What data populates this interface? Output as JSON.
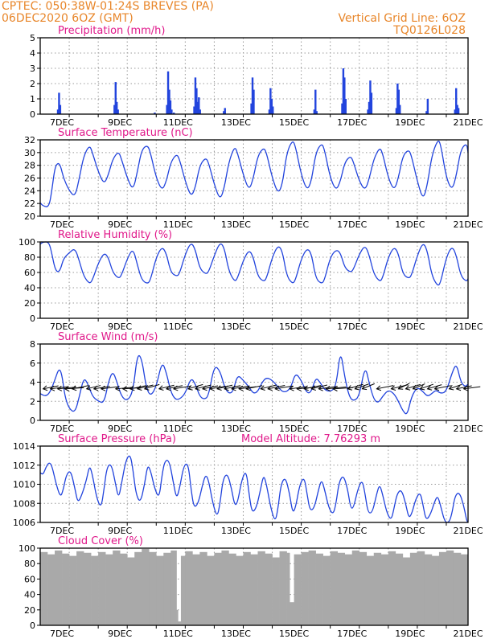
{
  "header": {
    "line1_left": "CPTEC:   050:38W-01:24S   BREVES (PA)",
    "line2_left": "06DEC2020 6OZ (GMT)",
    "line1_right": "Vertical Grid Line: 6OZ",
    "line2_right": "TQ0126L028"
  },
  "colors": {
    "header": "#e8862a",
    "title": "#e0188a",
    "series": "#2244dd",
    "cloud": "#a9a9a9"
  },
  "x_axis": {
    "labels": [
      "7DEC",
      "9DEC",
      "11DEC",
      "13DEC",
      "15DEC",
      "17DEC",
      "19DEC",
      "21DEC"
    ],
    "label_day": [
      7,
      9,
      11,
      13,
      15,
      17,
      19,
      21
    ],
    "start_day": 6.25,
    "end_day": 21.0,
    "grid_days": [
      7.25,
      8.25,
      9.25,
      10.25,
      11.25,
      12.25,
      13.25,
      14.25,
      15.25,
      16.25,
      17.25,
      18.25,
      19.25,
      20.25
    ]
  },
  "chart_data": [
    {
      "id": "precip",
      "type": "bar",
      "title": "Precipitation (mm/h)",
      "ylim": [
        0,
        5
      ],
      "yticks": [
        0,
        1,
        2,
        3,
        4,
        5
      ],
      "unit": "mm/h",
      "x": [
        6.86,
        6.9,
        6.94,
        8.81,
        8.85,
        8.89,
        8.93,
        10.2,
        10.62,
        10.66,
        10.7,
        10.74,
        10.78,
        10.86,
        11.56,
        11.6,
        11.64,
        11.68,
        11.72,
        11.76,
        12.58,
        12.62,
        13.53,
        13.57,
        13.61,
        14.15,
        14.19,
        14.23,
        14.27,
        15.7,
        15.74,
        15.78,
        16.66,
        16.7,
        16.74,
        16.78,
        17.55,
        17.59,
        17.63,
        17.67,
        18.53,
        18.57,
        18.61,
        18.65,
        19.57,
        19.61,
        20.55,
        20.59,
        20.63,
        20.67
      ],
      "values": [
        0.3,
        1.4,
        0.6,
        0.6,
        2.1,
        0.8,
        0.3,
        0.1,
        0.6,
        2.8,
        1.6,
        0.9,
        0.3,
        0.1,
        0.5,
        2.4,
        1.7,
        0.8,
        1.1,
        0.3,
        0.2,
        0.4,
        0.7,
        2.4,
        1.6,
        0.3,
        1.7,
        1.0,
        0.5,
        0.3,
        1.6,
        0.2,
        0.7,
        3.0,
        2.4,
        1.0,
        0.3,
        0.8,
        2.2,
        1.4,
        0.4,
        2.0,
        1.6,
        0.6,
        0.2,
        1.0,
        0.3,
        1.7,
        0.6,
        0.4
      ]
    },
    {
      "id": "temp",
      "type": "line",
      "title": "Surface Temperature (nC)",
      "ylim": [
        20,
        32
      ],
      "yticks": [
        20,
        22,
        24,
        26,
        28,
        30,
        32
      ],
      "unit": "nC",
      "x": [
        6.25,
        6.35,
        6.55,
        6.65,
        6.75,
        6.85,
        6.95,
        7.05,
        7.25,
        7.45,
        7.6,
        7.75,
        7.95,
        8.05,
        8.25,
        8.45,
        8.6,
        8.75,
        8.95,
        9.05,
        9.25,
        9.45,
        9.6,
        9.75,
        9.95,
        10.05,
        10.25,
        10.45,
        10.6,
        10.75,
        10.95,
        11.05,
        11.25,
        11.45,
        11.6,
        11.75,
        11.95,
        12.05,
        12.25,
        12.45,
        12.6,
        12.75,
        12.95,
        13.05,
        13.25,
        13.45,
        13.6,
        13.75,
        13.95,
        14.05,
        14.25,
        14.45,
        14.6,
        14.75,
        14.95,
        15.05,
        15.25,
        15.45,
        15.6,
        15.75,
        15.95,
        16.05,
        16.25,
        16.45,
        16.6,
        16.75,
        16.95,
        17.05,
        17.25,
        17.45,
        17.6,
        17.75,
        17.95,
        18.05,
        18.25,
        18.45,
        18.6,
        18.75,
        18.95,
        19.05,
        19.25,
        19.45,
        19.6,
        19.75,
        19.95,
        20.05,
        20.25,
        20.45,
        20.6,
        20.75,
        20.95,
        21.0
      ],
      "values": [
        22.1,
        21.6,
        21.4,
        24.0,
        27.5,
        28.4,
        28.0,
        26.0,
        24.0,
        23.0,
        26.0,
        29.5,
        31.2,
        30.0,
        27.0,
        25.0,
        26.5,
        29.0,
        30.2,
        29.0,
        26.0,
        24.0,
        27.0,
        30.5,
        31.2,
        30.0,
        26.0,
        24.0,
        25.5,
        28.5,
        29.8,
        29.0,
        25.5,
        23.0,
        24.5,
        28.0,
        29.2,
        28.5,
        25.0,
        22.5,
        24.5,
        28.5,
        31.0,
        30.0,
        26.5,
        24.0,
        26.0,
        29.5,
        30.8,
        30.0,
        26.0,
        23.5,
        25.0,
        30.0,
        32.0,
        31.0,
        26.5,
        24.0,
        25.5,
        30.0,
        31.5,
        30.5,
        26.0,
        24.0,
        25.5,
        28.5,
        29.5,
        28.5,
        25.5,
        24.0,
        26.0,
        29.0,
        30.8,
        30.0,
        26.0,
        24.0,
        26.0,
        29.5,
        30.5,
        29.5,
        25.5,
        22.5,
        25.0,
        29.5,
        32.0,
        31.5,
        26.0,
        24.0,
        26.5,
        30.5,
        31.5,
        30.0
      ]
    },
    {
      "id": "rh",
      "type": "line",
      "title": "Relative Humidity (%)",
      "ylim": [
        0,
        100
      ],
      "yticks": [
        0,
        20,
        40,
        60,
        80,
        100
      ],
      "unit": "%",
      "x": [
        6.25,
        6.35,
        6.55,
        6.65,
        6.75,
        6.85,
        6.95,
        7.05,
        7.25,
        7.45,
        7.6,
        7.75,
        7.95,
        8.05,
        8.25,
        8.45,
        8.6,
        8.75,
        8.95,
        9.05,
        9.25,
        9.45,
        9.6,
        9.75,
        9.95,
        10.05,
        10.25,
        10.45,
        10.6,
        10.75,
        10.95,
        11.05,
        11.25,
        11.45,
        11.6,
        11.75,
        11.95,
        12.05,
        12.25,
        12.45,
        12.6,
        12.75,
        12.95,
        13.05,
        13.25,
        13.45,
        13.6,
        13.75,
        13.95,
        14.05,
        14.25,
        14.45,
        14.6,
        14.75,
        14.95,
        15.05,
        15.25,
        15.45,
        15.6,
        15.75,
        15.95,
        16.05,
        16.25,
        16.45,
        16.6,
        16.75,
        16.95,
        17.05,
        17.25,
        17.45,
        17.6,
        17.75,
        17.95,
        18.05,
        18.25,
        18.45,
        18.6,
        18.75,
        18.95,
        19.05,
        19.25,
        19.45,
        19.6,
        19.75,
        19.95,
        20.05,
        20.25,
        20.45,
        20.6,
        20.75,
        20.95,
        21.0
      ],
      "values": [
        97,
        100,
        100,
        85,
        66,
        60,
        64,
        78,
        86,
        92,
        75,
        55,
        45,
        50,
        72,
        86,
        80,
        60,
        52,
        56,
        78,
        92,
        70,
        50,
        45,
        50,
        80,
        94,
        85,
        60,
        55,
        58,
        84,
        100,
        90,
        65,
        58,
        60,
        82,
        100,
        92,
        62,
        48,
        52,
        76,
        90,
        80,
        55,
        48,
        52,
        80,
        96,
        88,
        55,
        45,
        50,
        78,
        92,
        85,
        52,
        45,
        50,
        80,
        90,
        86,
        66,
        60,
        64,
        84,
        96,
        82,
        58,
        48,
        52,
        80,
        94,
        85,
        58,
        52,
        56,
        82,
        100,
        88,
        56,
        42,
        46,
        80,
        95,
        82,
        55,
        48,
        52
      ]
    },
    {
      "id": "wind",
      "type": "line",
      "title": "Surface Wind (m/s)",
      "ylim": [
        0,
        8
      ],
      "yticks": [
        0,
        2,
        4,
        6,
        8
      ],
      "unit": "m/s",
      "x": [
        6.25,
        6.45,
        6.6,
        6.75,
        6.9,
        7.0,
        7.1,
        7.25,
        7.45,
        7.6,
        7.75,
        7.9,
        8.05,
        8.25,
        8.45,
        8.6,
        8.75,
        8.9,
        9.05,
        9.25,
        9.45,
        9.6,
        9.75,
        9.9,
        10.05,
        10.25,
        10.45,
        10.6,
        10.75,
        10.9,
        11.05,
        11.25,
        11.45,
        11.6,
        11.75,
        11.9,
        12.05,
        12.25,
        12.45,
        12.6,
        12.75,
        12.9,
        13.05,
        13.25,
        13.45,
        13.6,
        13.75,
        13.9,
        14.05,
        14.25,
        14.45,
        14.6,
        14.75,
        14.9,
        15.05,
        15.25,
        15.45,
        15.6,
        15.75,
        15.9,
        16.05,
        16.25,
        16.45,
        16.6,
        16.75,
        16.9,
        17.05,
        17.25,
        17.45,
        17.6,
        17.75,
        17.9,
        18.05,
        18.25,
        18.45,
        18.6,
        18.75,
        18.9,
        19.05,
        19.25,
        19.45,
        19.6,
        19.75,
        19.9,
        20.05,
        20.25,
        20.45,
        20.6,
        20.75,
        20.9,
        21.0
      ],
      "values": [
        2.8,
        2.5,
        3.0,
        4.2,
        5.5,
        4.8,
        2.5,
        1.2,
        0.8,
        2.5,
        4.5,
        3.8,
        2.5,
        2.0,
        1.8,
        4.0,
        5.2,
        4.0,
        2.5,
        2.0,
        3.0,
        7.0,
        6.5,
        3.5,
        2.5,
        3.5,
        6.2,
        5.0,
        3.0,
        2.2,
        2.2,
        2.8,
        4.5,
        3.8,
        2.5,
        2.2,
        2.5,
        5.8,
        5.2,
        3.5,
        2.8,
        3.0,
        4.8,
        4.2,
        3.5,
        2.8,
        3.0,
        4.0,
        4.5,
        4.2,
        3.5,
        3.0,
        3.0,
        3.5,
        5.0,
        4.2,
        2.8,
        3.0,
        4.5,
        4.0,
        3.2,
        3.0,
        3.5,
        7.5,
        4.5,
        2.5,
        2.0,
        2.5,
        5.8,
        3.8,
        2.2,
        1.8,
        2.5,
        3.2,
        2.8,
        2.0,
        1.0,
        0.5,
        2.5,
        3.5,
        3.0,
        2.5,
        2.8,
        3.2,
        2.8,
        3.0,
        5.0,
        6.0,
        4.0,
        3.5,
        3.8
      ],
      "barb_days": [
        6.35,
        6.6,
        6.85,
        7.1,
        7.35,
        7.85,
        8.1,
        8.35,
        8.85,
        9.1,
        9.35,
        9.6,
        9.85,
        10.35,
        10.6,
        10.85,
        11.35,
        11.6,
        11.85,
        12.1,
        12.35,
        12.6,
        12.85,
        13.1,
        13.35,
        13.85,
        14.1,
        14.35,
        14.85,
        15.1,
        15.35,
        15.6,
        15.85,
        16.1,
        16.35,
        16.85,
        17.1,
        17.35,
        17.85,
        18.35,
        18.6,
        18.85,
        19.1,
        19.35,
        19.6,
        19.85,
        20.35,
        20.6,
        20.85
      ],
      "barb_dir_deg": [
        60,
        70,
        75,
        80,
        60,
        55,
        65,
        70,
        75,
        80,
        60,
        55,
        50,
        55,
        60,
        65,
        50,
        55,
        60,
        65,
        55,
        60,
        65,
        70,
        60,
        55,
        60,
        65,
        70,
        75,
        60,
        55,
        70,
        75,
        80,
        50,
        45,
        40,
        60,
        55,
        35,
        50,
        40,
        45,
        50,
        60,
        45,
        60,
        70
      ],
      "barb_speed": [
        3.0,
        3.5,
        3.5,
        3.5,
        3.5,
        2.8,
        3.0,
        3.2,
        3.0,
        3.2,
        3.3,
        3.5,
        3.5,
        3.2,
        3.3,
        3.3,
        3.5,
        3.5,
        3.0,
        3.0,
        3.3,
        3.3,
        3.5,
        3.2,
        3.3,
        3.5,
        3.6,
        3.5,
        3.3,
        3.3,
        3.5,
        3.5,
        3.8,
        4.0,
        3.8,
        3.8,
        3.6,
        3.5,
        3.5,
        3.8,
        3.5,
        3.5,
        3.3,
        3.3,
        3.3,
        3.3,
        3.0,
        3.0,
        3.0
      ]
    },
    {
      "id": "pres",
      "type": "line",
      "title": "Surface Pressure (hPa)",
      "annotation": "Model Altitude: 7.76293 m",
      "ylim": [
        1006,
        1014
      ],
      "yticks": [
        1006,
        1008,
        1010,
        1012,
        1014
      ],
      "unit": "hPa",
      "x": [
        6.25,
        6.35,
        6.45,
        6.55,
        6.65,
        6.8,
        6.95,
        7.05,
        7.15,
        7.3,
        7.45,
        7.55,
        7.7,
        7.85,
        7.95,
        8.05,
        8.2,
        8.35,
        8.45,
        8.55,
        8.7,
        8.85,
        8.95,
        9.05,
        9.2,
        9.35,
        9.45,
        9.55,
        9.7,
        9.85,
        9.95,
        10.05,
        10.2,
        10.35,
        10.45,
        10.55,
        10.7,
        10.85,
        10.95,
        11.05,
        11.2,
        11.35,
        11.45,
        11.55,
        11.7,
        11.85,
        11.95,
        12.05,
        12.2,
        12.35,
        12.45,
        12.55,
        12.7,
        12.85,
        12.95,
        13.05,
        13.2,
        13.35,
        13.45,
        13.55,
        13.7,
        13.85,
        13.95,
        14.05,
        14.2,
        14.35,
        14.45,
        14.55,
        14.7,
        14.85,
        14.95,
        15.05,
        15.2,
        15.35,
        15.45,
        15.55,
        15.7,
        15.85,
        15.95,
        16.05,
        16.2,
        16.35,
        16.45,
        16.55,
        16.7,
        16.85,
        16.95,
        17.05,
        17.2,
        17.35,
        17.45,
        17.55,
        17.7,
        17.85,
        17.95,
        18.05,
        18.2,
        18.35,
        18.45,
        18.55,
        18.7,
        18.85,
        18.95,
        19.05,
        19.2,
        19.35,
        19.45,
        19.55,
        19.7,
        19.85,
        19.95,
        20.05,
        20.2,
        20.35,
        20.45,
        20.55,
        20.7,
        20.85,
        20.95,
        21.0
      ],
      "values": [
        1011.2,
        1011.0,
        1011.8,
        1012.3,
        1012.0,
        1010.0,
        1008.6,
        1009.5,
        1011.0,
        1011.5,
        1009.5,
        1008.0,
        1009.0,
        1010.5,
        1012.0,
        1011.0,
        1008.5,
        1007.5,
        1009.5,
        1011.8,
        1012.2,
        1010.0,
        1008.5,
        1010.0,
        1012.5,
        1013.2,
        1011.5,
        1009.0,
        1008.0,
        1010.0,
        1012.0,
        1011.5,
        1009.5,
        1008.5,
        1011.0,
        1012.5,
        1012.5,
        1010.0,
        1008.5,
        1009.5,
        1012.0,
        1012.2,
        1009.5,
        1007.5,
        1008.0,
        1010.0,
        1011.0,
        1010.5,
        1008.0,
        1006.5,
        1008.0,
        1010.5,
        1011.2,
        1009.5,
        1007.8,
        1008.0,
        1010.5,
        1011.5,
        1009.0,
        1007.0,
        1007.5,
        1009.5,
        1011.0,
        1010.0,
        1007.5,
        1006.0,
        1007.5,
        1010.0,
        1010.8,
        1009.0,
        1007.0,
        1007.5,
        1010.0,
        1010.8,
        1009.0,
        1007.2,
        1007.5,
        1009.5,
        1010.5,
        1009.5,
        1007.5,
        1006.8,
        1008.0,
        1010.2,
        1011.0,
        1009.5,
        1007.5,
        1007.5,
        1009.5,
        1010.5,
        1009.0,
        1007.0,
        1007.0,
        1009.0,
        1010.0,
        1009.0,
        1007.0,
        1006.2,
        1007.5,
        1009.0,
        1009.5,
        1008.0,
        1006.5,
        1006.8,
        1008.5,
        1009.2,
        1007.8,
        1006.2,
        1006.8,
        1008.2,
        1008.8,
        1007.8,
        1006.0,
        1006.0,
        1007.0,
        1008.8,
        1009.2,
        1007.8,
        1006.2,
        1006.0
      ]
    },
    {
      "id": "cloud",
      "type": "area",
      "title": "Cloud Cover (%)",
      "ylim": [
        0,
        100
      ],
      "yticks": [
        0,
        20,
        40,
        60,
        80,
        100
      ],
      "unit": "%",
      "x": [
        6.25,
        6.5,
        6.75,
        7.0,
        7.25,
        7.5,
        7.75,
        8.0,
        8.25,
        8.5,
        8.75,
        9.0,
        9.25,
        9.5,
        9.75,
        10.0,
        10.25,
        10.5,
        10.75,
        10.95,
        11.0,
        11.1,
        11.25,
        11.5,
        11.75,
        12.0,
        12.25,
        12.5,
        12.75,
        13.0,
        13.25,
        13.5,
        13.75,
        14.0,
        14.25,
        14.5,
        14.75,
        14.85,
        15.0,
        15.25,
        15.5,
        15.75,
        16.0,
        16.25,
        16.5,
        16.75,
        17.0,
        17.25,
        17.5,
        17.75,
        18.0,
        18.25,
        18.5,
        18.75,
        19.0,
        19.25,
        19.5,
        19.75,
        20.0,
        20.25,
        20.5,
        20.75,
        21.0
      ],
      "values": [
        95,
        92,
        97,
        93,
        90,
        96,
        94,
        90,
        95,
        92,
        97,
        93,
        88,
        95,
        99,
        95,
        90,
        94,
        97,
        20,
        5,
        90,
        96,
        92,
        95,
        90,
        94,
        97,
        93,
        90,
        95,
        92,
        96,
        93,
        88,
        96,
        94,
        30,
        92,
        95,
        97,
        93,
        90,
        96,
        94,
        92,
        97,
        95,
        90,
        94,
        92,
        96,
        93,
        88,
        94,
        96,
        92,
        90,
        95,
        97,
        94,
        92,
        96
      ]
    }
  ]
}
